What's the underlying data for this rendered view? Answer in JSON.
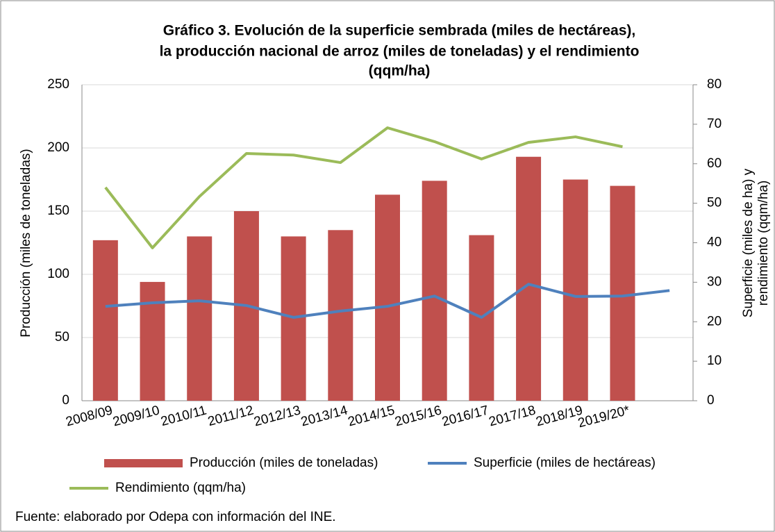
{
  "chart_data": {
    "type": "bar",
    "title": [
      "Gráfico 3. Evolución de la superficie sembrada (miles de hectáreas),",
      "la producción nacional de arroz (miles de toneladas) y el rendimiento",
      "(qqm/ha)"
    ],
    "categories": [
      "2008/09",
      "2009/10",
      "2010/11",
      "2011/12",
      "2012/13",
      "2013/14",
      "2014/15",
      "2015/16",
      "2016/17",
      "2017/18",
      "2018/19",
      "2019/20*",
      null
    ],
    "series": [
      {
        "name": "Producción (miles de toneladas)",
        "type": "bar",
        "color": "#c0504d",
        "values": [
          127,
          94,
          130,
          150,
          130,
          135,
          163,
          174,
          131,
          193,
          175,
          170,
          null
        ]
      },
      {
        "name": "Superficie (miles de hectáreas)",
        "type": "line",
        "axis": "y2",
        "color": "#4f81bd",
        "values": [
          23.9,
          24.8,
          25.3,
          24.1,
          21.1,
          22.7,
          23.9,
          26.5,
          21.1,
          29.5,
          26.4,
          26.5,
          27.9
        ]
      },
      {
        "name": "Rendimiento (qqm/ha)",
        "type": "line",
        "axis": "y2",
        "color": "#9bbb59",
        "values": [
          54,
          38.7,
          51.7,
          62.6,
          62.2,
          60.3,
          69.1,
          65.6,
          61.2,
          65.4,
          66.8,
          64.3,
          null
        ]
      }
    ],
    "y_label": "Producción (miles de toneladas)",
    "y2_label": [
      "Superficie (miles de ha) y",
      "rendimiento (qqm/ha)"
    ],
    "ylim": [
      0,
      250
    ],
    "yticks": [
      0,
      50,
      100,
      150,
      200,
      250
    ],
    "y2lim": [
      0,
      80
    ],
    "y2ticks": [
      0,
      10,
      20,
      30,
      40,
      50,
      60,
      70,
      80
    ],
    "grid": true,
    "legend": "bottom",
    "source": "Fuente: elaborado por Odepa con información del INE."
  }
}
